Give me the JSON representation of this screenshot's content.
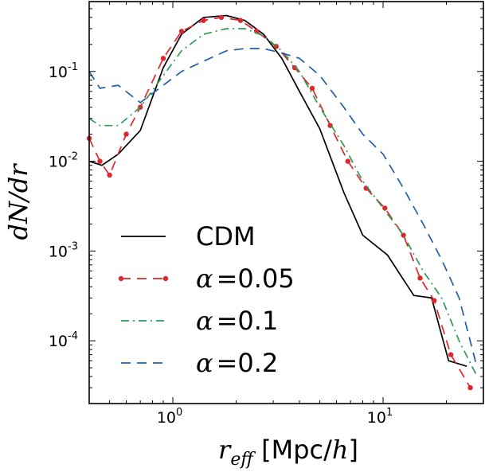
{
  "chart_data": {
    "type": "line",
    "x_scale": "log",
    "y_scale": "log",
    "xlim": [
      0.4,
      30
    ],
    "ylim": [
      2e-05,
      0.6
    ],
    "xlabel_math": "r",
    "xlabel_sub": "eff",
    "xlabel_unit": " [Mpc/",
    "xlabel_h": "h",
    "xlabel_close": "]",
    "ylabel": "dN/dr",
    "x_ticks": [
      {
        "value": 1,
        "base": "10",
        "exp": "0"
      },
      {
        "value": 10,
        "base": "10",
        "exp": "1"
      }
    ],
    "y_ticks": [
      {
        "value": 0.1,
        "base": "10",
        "exp": "-1"
      },
      {
        "value": 0.01,
        "base": "10",
        "exp": "-2"
      },
      {
        "value": 0.001,
        "base": "10",
        "exp": "-3"
      },
      {
        "value": 0.0001,
        "base": "10",
        "exp": "-4"
      }
    ],
    "legend_position": "lower-left",
    "series": [
      {
        "name": "CDM",
        "color": "#000000",
        "style": "solid",
        "markers": false,
        "x": [
          0.4,
          0.46,
          0.55,
          0.7,
          0.9,
          1.1,
          1.4,
          1.8,
          2.2,
          2.7,
          3.3,
          4.0,
          5.0,
          6.5,
          8.0,
          10.5,
          14.0,
          17.0,
          20.5,
          25.0
        ],
        "y": [
          0.01,
          0.009,
          0.012,
          0.022,
          0.11,
          0.26,
          0.4,
          0.42,
          0.37,
          0.26,
          0.14,
          0.06,
          0.023,
          0.0045,
          0.0015,
          0.0009,
          0.00032,
          0.0003,
          6e-05,
          5.2e-05
        ]
      },
      {
        "name": "α = 0.05",
        "color": "#e0262b",
        "style": "dashed",
        "markers": true,
        "x": [
          0.4,
          0.45,
          0.5,
          0.6,
          0.7,
          0.9,
          1.1,
          1.4,
          1.7,
          2.1,
          2.5,
          3.1,
          3.8,
          4.6,
          5.6,
          6.8,
          8.3,
          10.2,
          12.5,
          15.0,
          17.5,
          21.0,
          26.0
        ],
        "y": [
          0.018,
          0.01,
          0.007,
          0.02,
          0.04,
          0.14,
          0.28,
          0.37,
          0.4,
          0.37,
          0.28,
          0.19,
          0.11,
          0.065,
          0.025,
          0.01,
          0.005,
          0.003,
          0.0015,
          0.0005,
          0.00028,
          7e-05,
          3e-05
        ]
      },
      {
        "name": "α = 0.1",
        "color": "#2a9d50",
        "style": "dashdot",
        "markers": false,
        "x": [
          0.4,
          0.45,
          0.55,
          0.7,
          0.9,
          1.1,
          1.4,
          1.8,
          2.2,
          2.7,
          3.3,
          4.0,
          5.0,
          6.5,
          8.0,
          10.0,
          12.5,
          15.5,
          19.0,
          23.0,
          28.0
        ],
        "y": [
          0.03,
          0.025,
          0.025,
          0.04,
          0.09,
          0.17,
          0.26,
          0.3,
          0.3,
          0.25,
          0.17,
          0.1,
          0.04,
          0.015,
          0.006,
          0.003,
          0.0015,
          0.0006,
          0.0003,
          0.0001,
          4e-05
        ]
      },
      {
        "name": "α = 0.2",
        "color": "#1f5fa8",
        "style": "dashed",
        "markers": false,
        "x": [
          0.4,
          0.45,
          0.55,
          0.7,
          0.9,
          1.1,
          1.4,
          1.8,
          2.2,
          2.7,
          3.3,
          4.0,
          5.0,
          6.5,
          8.0,
          10.0,
          12.5,
          15.5,
          19.0,
          23.0,
          28.0
        ],
        "y": [
          0.1,
          0.065,
          0.07,
          0.045,
          0.07,
          0.1,
          0.13,
          0.17,
          0.18,
          0.18,
          0.16,
          0.14,
          0.09,
          0.04,
          0.02,
          0.012,
          0.005,
          0.002,
          0.0008,
          0.0003,
          5e-05
        ]
      }
    ],
    "legend": [
      {
        "label": "CDM",
        "math": false
      },
      {
        "label_prefix": "α",
        "label_eq": "=0.05",
        "math": true
      },
      {
        "label_prefix": "α",
        "label_eq": "=0.1",
        "math": true
      },
      {
        "label_prefix": "α",
        "label_eq": "=0.2",
        "math": true
      }
    ]
  }
}
